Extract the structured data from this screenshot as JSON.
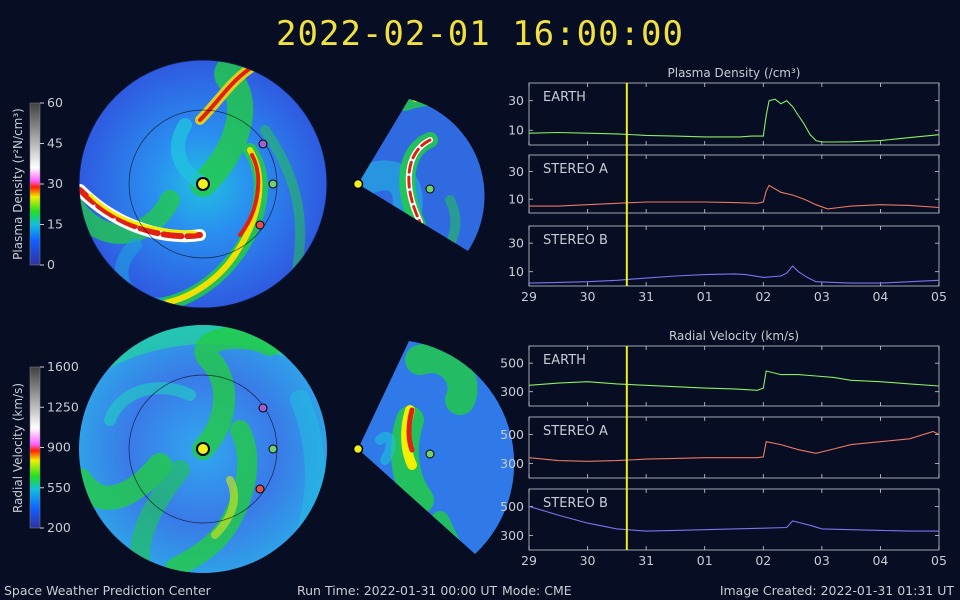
{
  "timestamp": "2022-02-01 16:00:00",
  "colorbars": {
    "density": {
      "label": "Plasma Density (r²N/cm³)",
      "ticks": [
        "0",
        "15",
        "30",
        "45",
        "60"
      ],
      "range": [
        0,
        60
      ]
    },
    "velocity": {
      "label": "Radial Velocity (km/s)",
      "ticks": [
        "200",
        "550",
        "900",
        "1250",
        "1600"
      ],
      "range": [
        200,
        1600
      ]
    }
  },
  "chart_data": [
    {
      "type": "line",
      "title": "Plasma Density (/cm³)",
      "x_ticks": [
        "29",
        "30",
        "31",
        "01",
        "02",
        "03",
        "04",
        "05"
      ],
      "current_time_x": 1.67,
      "panels": [
        {
          "name": "EARTH",
          "color": "#88ee66",
          "yticks": [
            10,
            30
          ],
          "ylim": [
            0,
            42
          ],
          "x": [
            0,
            0.5,
            1,
            1.5,
            2,
            2.5,
            3,
            3.2,
            3.4,
            3.6,
            3.8,
            3.95,
            4.0,
            4.05,
            4.1,
            4.2,
            4.3,
            4.4,
            4.5,
            4.6,
            4.7,
            4.8,
            4.9,
            5.0,
            5.2,
            5.5,
            6.0,
            6.5,
            7.0
          ],
          "y": [
            8,
            8.5,
            8,
            7.5,
            6.5,
            6,
            5.5,
            5.5,
            5.5,
            5.5,
            6,
            6,
            6,
            20,
            30,
            31,
            28,
            30,
            26,
            20,
            14,
            7,
            3,
            2,
            2,
            2.2,
            3,
            5,
            7
          ]
        },
        {
          "name": "STEREO A",
          "color": "#ee7766",
          "yticks": [
            10,
            30
          ],
          "ylim": [
            0,
            42
          ],
          "x": [
            0,
            0.5,
            1,
            1.5,
            2,
            2.5,
            3,
            3.5,
            3.9,
            4.0,
            4.05,
            4.1,
            4.3,
            4.5,
            4.7,
            4.9,
            5.1,
            5.3,
            5.5,
            6.0,
            6.5,
            7.0
          ],
          "y": [
            5,
            5,
            6,
            7,
            8,
            8,
            8,
            7.5,
            7,
            8,
            16,
            20,
            15,
            13,
            10,
            6,
            3,
            4,
            5,
            6,
            5.5,
            4
          ]
        },
        {
          "name": "STEREO B",
          "color": "#7777ee",
          "yticks": [
            10,
            30
          ],
          "ylim": [
            0,
            42
          ],
          "x": [
            0,
            0.5,
            1,
            1.5,
            2,
            2.5,
            3,
            3.5,
            3.7,
            4.0,
            4.3,
            4.4,
            4.5,
            4.6,
            4.75,
            4.9,
            5.2,
            5.5,
            6.0,
            6.5,
            7.0
          ],
          "y": [
            2,
            2.5,
            3,
            4,
            5.5,
            7,
            8,
            8.5,
            8,
            6,
            7,
            9,
            14,
            10,
            6,
            3,
            2.5,
            2,
            2,
            3,
            4
          ]
        }
      ]
    },
    {
      "type": "line",
      "title": "Radial Velocity (km/s)",
      "x_ticks": [
        "29",
        "30",
        "31",
        "01",
        "02",
        "03",
        "04",
        "05"
      ],
      "current_time_x": 1.67,
      "panels": [
        {
          "name": "EARTH",
          "color": "#88ee66",
          "yticks": [
            300,
            500
          ],
          "ylim": [
            200,
            620
          ],
          "x": [
            0,
            0.5,
            1,
            1.5,
            2,
            2.5,
            3,
            3.5,
            3.9,
            4.0,
            4.05,
            4.3,
            4.6,
            4.9,
            5.2,
            5.5,
            6.0,
            6.5,
            7.0
          ],
          "y": [
            345,
            360,
            370,
            355,
            345,
            335,
            325,
            320,
            310,
            325,
            445,
            420,
            420,
            410,
            400,
            380,
            370,
            355,
            340
          ]
        },
        {
          "name": "STEREO A",
          "color": "#ee7766",
          "yticks": [
            300,
            500
          ],
          "ylim": [
            200,
            620
          ],
          "x": [
            0,
            0.5,
            1,
            1.5,
            2,
            2.5,
            3,
            3.5,
            3.9,
            4.0,
            4.05,
            4.3,
            4.6,
            4.9,
            5.2,
            5.5,
            6.0,
            6.5,
            6.9,
            7.0
          ],
          "y": [
            340,
            320,
            315,
            320,
            330,
            335,
            340,
            340,
            340,
            345,
            450,
            430,
            395,
            370,
            400,
            430,
            450,
            470,
            520,
            500
          ]
        },
        {
          "name": "STEREO B",
          "color": "#7777ee",
          "yticks": [
            300,
            500
          ],
          "ylim": [
            200,
            620
          ],
          "x": [
            0,
            0.5,
            1,
            1.5,
            2,
            2.5,
            3,
            3.5,
            4.0,
            4.4,
            4.5,
            4.6,
            4.8,
            5.0,
            5.5,
            6.0,
            6.5,
            7.0
          ],
          "y": [
            500,
            440,
            385,
            345,
            330,
            335,
            340,
            345,
            350,
            355,
            400,
            390,
            370,
            345,
            340,
            335,
            330,
            330
          ]
        }
      ]
    }
  ],
  "footer": {
    "org": "Space Weather Prediction Center",
    "run_time": "Run Time: 2022-01-31 00:00 UT",
    "mode": "Mode: CME",
    "created": "Image Created: 2022-01-31 01:31 UT"
  }
}
